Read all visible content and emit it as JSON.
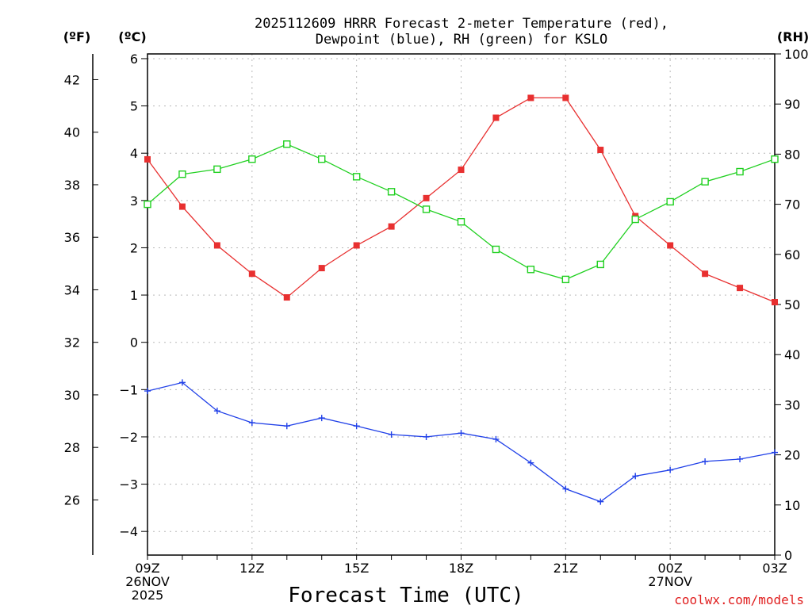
{
  "header": {
    "title_line1": "2025112609 HRRR Forecast 2-meter Temperature (red),",
    "title_line2": "Dewpoint (blue), RH (green) for KSLO",
    "unit_f": "(ºF)",
    "unit_c": "(ºC)",
    "unit_rh": "(RH)"
  },
  "footer": {
    "x_title": "Forecast Time (UTC)",
    "credit": "coolwx.com/models"
  },
  "chart_data": {
    "type": "line",
    "x": [
      "09Z",
      "10Z",
      "11Z",
      "12Z",
      "13Z",
      "14Z",
      "15Z",
      "16Z",
      "17Z",
      "18Z",
      "19Z",
      "20Z",
      "21Z",
      "22Z",
      "23Z",
      "00Z",
      "01Z",
      "02Z",
      "03Z"
    ],
    "x_tick_labels": [
      {
        "index": 0,
        "lines": [
          "09Z",
          "26NOV",
          "2025"
        ]
      },
      {
        "index": 3,
        "lines": [
          "12Z"
        ]
      },
      {
        "index": 6,
        "lines": [
          "15Z"
        ]
      },
      {
        "index": 9,
        "lines": [
          "18Z"
        ]
      },
      {
        "index": 12,
        "lines": [
          "21Z"
        ]
      },
      {
        "index": 15,
        "lines": [
          "00Z",
          "27NOV"
        ]
      },
      {
        "index": 18,
        "lines": [
          "03Z"
        ]
      }
    ],
    "series": [
      {
        "name": "Temperature",
        "color": "#e83030",
        "axis": "c",
        "marker": "filled-square",
        "values": [
          3.87,
          2.87,
          2.05,
          1.45,
          0.95,
          1.57,
          2.05,
          2.45,
          3.05,
          3.65,
          4.75,
          5.17,
          5.17,
          4.07,
          2.67,
          2.05,
          1.45,
          1.15,
          0.85
        ]
      },
      {
        "name": "Dewpoint",
        "color": "#2040e8",
        "axis": "c",
        "marker": "plus",
        "values": [
          -1.03,
          -0.85,
          -1.45,
          -1.7,
          -1.77,
          -1.6,
          -1.77,
          -1.95,
          -2.0,
          -1.92,
          -2.05,
          -2.55,
          -3.1,
          -3.37,
          -2.83,
          -2.7,
          -2.52,
          -2.47,
          -2.33
        ]
      },
      {
        "name": "RH",
        "color": "#20d020",
        "axis": "rh",
        "marker": "open-square",
        "values": [
          70,
          76,
          77,
          79,
          82,
          79,
          75.5,
          72.5,
          69,
          66.5,
          61,
          57,
          55,
          58,
          67,
          70.5,
          74.5,
          76.5,
          79
        ]
      }
    ],
    "axes": {
      "celsius": {
        "label": "(ºC)",
        "ylim": [
          -4.5,
          6.1
        ],
        "ticks": [
          -4,
          -3,
          -2,
          -1,
          0,
          1,
          2,
          3,
          4,
          5,
          6
        ]
      },
      "fahrenheit": {
        "label": "(ºF)",
        "ticks": [
          26,
          28,
          30,
          32,
          34,
          36,
          38,
          40,
          42
        ]
      },
      "rh": {
        "label": "(RH)",
        "ylim": [
          0,
          100
        ],
        "ticks": [
          0,
          10,
          20,
          30,
          40,
          50,
          60,
          70,
          80,
          90,
          100
        ]
      }
    },
    "grid": true
  }
}
